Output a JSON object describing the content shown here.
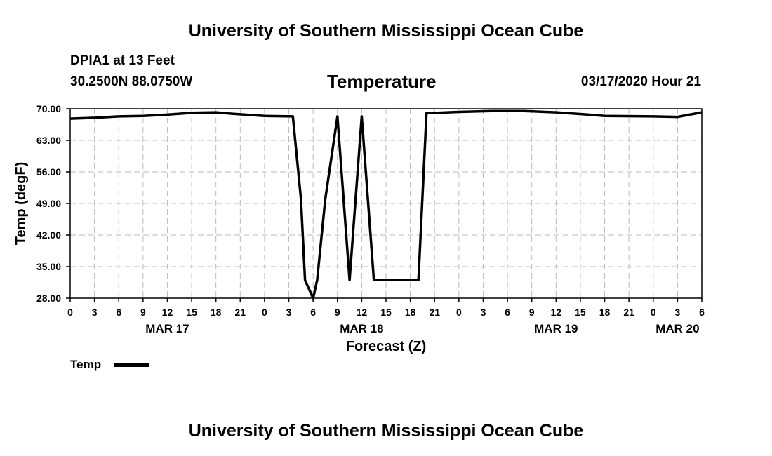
{
  "header": {
    "title": "University of Southern Mississippi Ocean Cube",
    "station": "DPIA1 at 13 Feet",
    "coords": "30.2500N 88.0750W",
    "variable": "Temperature",
    "datetime": "03/17/2020 Hour 21"
  },
  "footer": {
    "title": "University of Southern Mississippi Ocean Cube"
  },
  "colors": {
    "line": "#000000",
    "grid": "#bbbbbb"
  },
  "chart_data": {
    "type": "line",
    "title": "Temperature",
    "xlabel": "Forecast (Z)",
    "ylabel": "Temp (degF)",
    "xlim": [
      0,
      78
    ],
    "ylim": [
      28.0,
      70.0
    ],
    "y_ticks": [
      "70.00",
      "63.00",
      "56.00",
      "49.00",
      "42.00",
      "35.00",
      "28.00"
    ],
    "x_tick_labels": [
      "0",
      "3",
      "6",
      "9",
      "12",
      "15",
      "18",
      "21",
      "0",
      "3",
      "6",
      "9",
      "12",
      "15",
      "18",
      "21",
      "0",
      "3",
      "6",
      "9",
      "12",
      "15",
      "18",
      "21",
      "0",
      "3",
      "6"
    ],
    "date_labels": [
      {
        "label": "MAR 17",
        "hour": 12
      },
      {
        "label": "MAR 18",
        "hour": 36
      },
      {
        "label": "MAR 19",
        "hour": 60
      },
      {
        "label": "MAR 20",
        "hour": 75
      }
    ],
    "grid": true,
    "legend": {
      "placement": "bottom-left",
      "label": "Temp"
    },
    "series": [
      {
        "name": "Temp",
        "x": [
          0,
          3,
          6,
          9,
          12,
          15,
          18,
          20,
          24,
          27.5,
          28.5,
          29,
          30,
          30.5,
          31.5,
          33,
          34.5,
          36,
          37.5,
          39,
          40.5,
          43,
          44,
          48,
          52,
          56,
          60,
          64,
          66,
          72,
          75,
          78
        ],
        "values": [
          67.8,
          68.0,
          68.3,
          68.4,
          68.7,
          69.1,
          69.2,
          68.9,
          68.4,
          68.3,
          50.0,
          32.0,
          28.0,
          32.0,
          50.0,
          68.3,
          32.0,
          68.3,
          32.0,
          32.0,
          32.0,
          32.0,
          69.0,
          69.3,
          69.5,
          69.5,
          69.2,
          68.7,
          68.4,
          68.3,
          68.2,
          69.2
        ]
      }
    ]
  }
}
